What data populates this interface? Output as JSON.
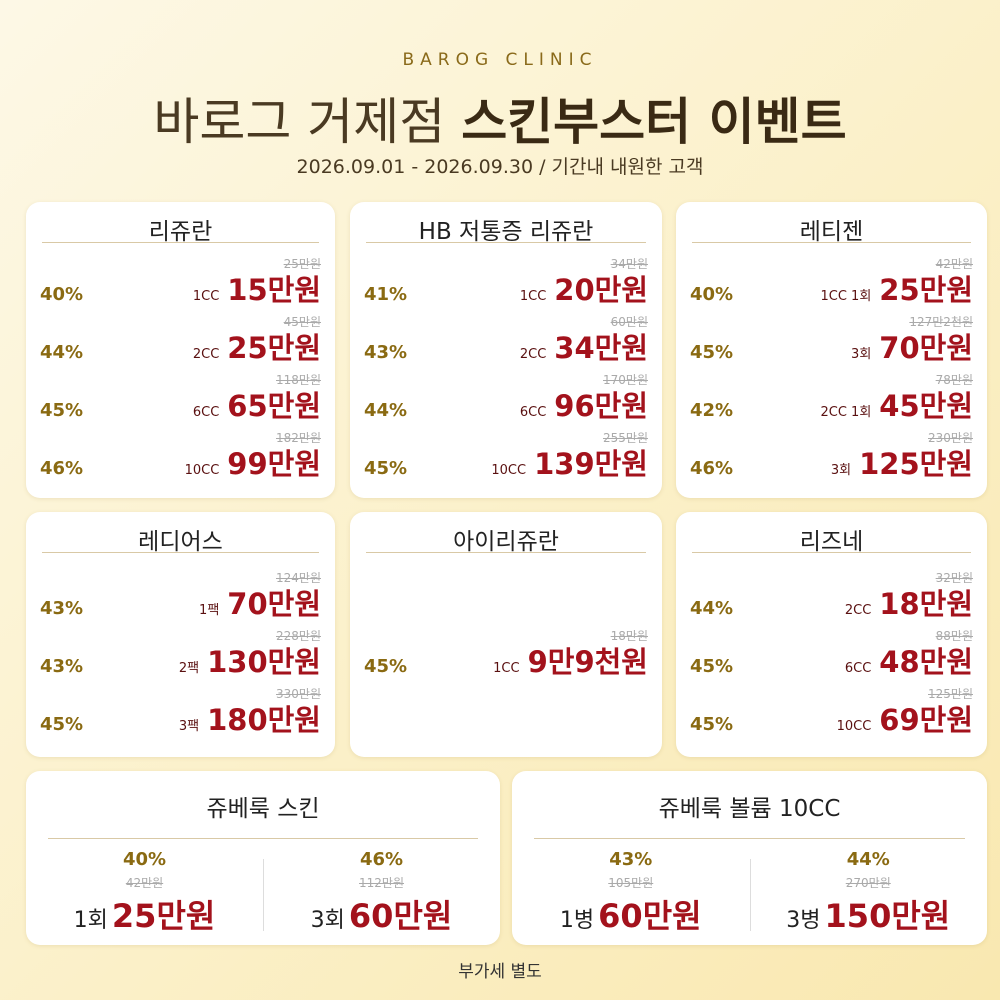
{
  "header": {
    "brand": "BAROG CLINIC",
    "title_light": "바로그 거제점",
    "title_bold": "스킨부스터 이벤트",
    "period": "2026.09.01 - 2026.09.30 / 기간내 내원한 고객"
  },
  "cards": [
    {
      "title": "리쥬란",
      "items": [
        {
          "discount": "40%",
          "option": "1CC",
          "original": "25만원",
          "price": "15만원"
        },
        {
          "discount": "44%",
          "option": "2CC",
          "original": "45만원",
          "price": "25만원"
        },
        {
          "discount": "45%",
          "option": "6CC",
          "original": "118만원",
          "price": "65만원"
        },
        {
          "discount": "46%",
          "option": "10CC",
          "original": "182만원",
          "price": "99만원"
        }
      ]
    },
    {
      "title": "HB 저통증 리쥬란",
      "items": [
        {
          "discount": "41%",
          "option": "1CC",
          "original": "34만원",
          "price": "20만원"
        },
        {
          "discount": "43%",
          "option": "2CC",
          "original": "60만원",
          "price": "34만원"
        },
        {
          "discount": "44%",
          "option": "6CC",
          "original": "170만원",
          "price": "96만원"
        },
        {
          "discount": "45%",
          "option": "10CC",
          "original": "255만원",
          "price": "139만원"
        }
      ]
    },
    {
      "title": "레티젠",
      "items": [
        {
          "discount": "40%",
          "option": "1CC 1회",
          "original": "42만원",
          "price": "25만원"
        },
        {
          "discount": "45%",
          "option": "3회",
          "original": "127만2천원",
          "price": "70만원"
        },
        {
          "discount": "42%",
          "option": "2CC 1회",
          "original": "78만원",
          "price": "45만원"
        },
        {
          "discount": "46%",
          "option": "3회",
          "original": "230만원",
          "price": "125만원"
        }
      ]
    },
    {
      "title": "레디어스",
      "items": [
        {
          "discount": "43%",
          "option": "1팩",
          "original": "124만원",
          "price": "70만원"
        },
        {
          "discount": "43%",
          "option": "2팩",
          "original": "228만원",
          "price": "130만원"
        },
        {
          "discount": "45%",
          "option": "3팩",
          "original": "330만원",
          "price": "180만원"
        }
      ]
    },
    {
      "title": "아이리쥬란",
      "items": [
        {
          "discount": "45%",
          "option": "1CC",
          "original": "18만원",
          "price": "9만9천원"
        }
      ]
    },
    {
      "title": "리즈네",
      "items": [
        {
          "discount": "44%",
          "option": "2CC",
          "original": "32만원",
          "price": "18만원"
        },
        {
          "discount": "45%",
          "option": "6CC",
          "original": "88만원",
          "price": "48만원"
        },
        {
          "discount": "45%",
          "option": "10CC",
          "original": "125만원",
          "price": "69만원"
        }
      ]
    }
  ],
  "wide_cards": [
    {
      "title": "쥬베룩 스킨",
      "items": [
        {
          "discount": "40%",
          "original": "42만원",
          "option": "1회",
          "price": "25만원"
        },
        {
          "discount": "46%",
          "original": "112만원",
          "option": "3회",
          "price": "60만원"
        }
      ]
    },
    {
      "title": "쥬베룩 볼륨 10CC",
      "items": [
        {
          "discount": "43%",
          "original": "105만원",
          "option": "1병",
          "price": "60만원"
        },
        {
          "discount": "44%",
          "original": "270만원",
          "option": "3병",
          "price": "150만원"
        }
      ]
    }
  ],
  "footer": "부가세 별도"
}
